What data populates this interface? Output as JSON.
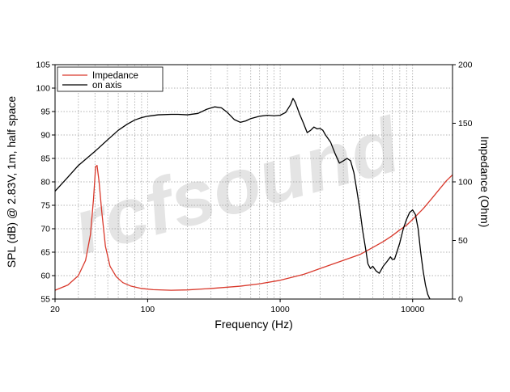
{
  "chart_data": {
    "type": "line",
    "xlabel": "Frequency (Hz)",
    "ylabel_left": "SPL (dB) @ 2.83V, 1m, half space",
    "ylabel_right": "Impedance (Ohm)",
    "x_scale": "log",
    "xlim": [
      20,
      20000
    ],
    "ylim_left": [
      55,
      105
    ],
    "ylim_right": [
      0,
      200
    ],
    "x_ticks": [
      "20",
      "100",
      "1000",
      "10000"
    ],
    "y_left_ticks": [
      "105",
      "100",
      "95",
      "90",
      "85",
      "80",
      "75",
      "70",
      "65",
      "60",
      "55"
    ],
    "y_right_ticks": [
      "200",
      "150",
      "100",
      "50",
      "0"
    ],
    "grid": true,
    "legend_position": "top-left",
    "watermark": "rcfsound",
    "series": [
      {
        "name": "Impedance",
        "axis": "right",
        "color": "#d9392c",
        "points": [
          [
            20,
            7.5
          ],
          [
            25,
            12
          ],
          [
            30,
            20
          ],
          [
            34,
            33
          ],
          [
            37,
            55
          ],
          [
            39,
            85
          ],
          [
            40.5,
            113
          ],
          [
            41.5,
            114
          ],
          [
            43,
            100
          ],
          [
            45,
            75
          ],
          [
            48,
            45
          ],
          [
            52,
            28
          ],
          [
            58,
            19
          ],
          [
            65,
            14
          ],
          [
            75,
            11
          ],
          [
            90,
            9
          ],
          [
            110,
            8
          ],
          [
            150,
            7.5
          ],
          [
            200,
            7.8
          ],
          [
            300,
            9
          ],
          [
            500,
            11
          ],
          [
            700,
            13
          ],
          [
            1000,
            16
          ],
          [
            1500,
            21
          ],
          [
            2000,
            26
          ],
          [
            3000,
            33
          ],
          [
            4000,
            38
          ],
          [
            5000,
            44
          ],
          [
            6000,
            49
          ],
          [
            7000,
            54
          ],
          [
            8000,
            59
          ],
          [
            9000,
            63
          ],
          [
            10000,
            68
          ],
          [
            12000,
            77
          ],
          [
            14000,
            86
          ],
          [
            16000,
            94
          ],
          [
            18000,
            101
          ],
          [
            20000,
            106
          ]
        ]
      },
      {
        "name": "on axis",
        "axis": "left",
        "color": "#000000",
        "points": [
          [
            20,
            78
          ],
          [
            25,
            81
          ],
          [
            30,
            83.5
          ],
          [
            40,
            86.5
          ],
          [
            50,
            89
          ],
          [
            60,
            91
          ],
          [
            70,
            92.3
          ],
          [
            80,
            93.2
          ],
          [
            90,
            93.7
          ],
          [
            100,
            94
          ],
          [
            120,
            94.3
          ],
          [
            150,
            94.4
          ],
          [
            170,
            94.4
          ],
          [
            200,
            94.3
          ],
          [
            240,
            94.6
          ],
          [
            280,
            95.5
          ],
          [
            320,
            96
          ],
          [
            360,
            95.8
          ],
          [
            400,
            94.8
          ],
          [
            450,
            93.3
          ],
          [
            500,
            92.7
          ],
          [
            550,
            93
          ],
          [
            600,
            93.5
          ],
          [
            700,
            94
          ],
          [
            800,
            94.2
          ],
          [
            900,
            94.1
          ],
          [
            1000,
            94.2
          ],
          [
            1100,
            94.8
          ],
          [
            1200,
            96.5
          ],
          [
            1250,
            97.8
          ],
          [
            1300,
            97
          ],
          [
            1400,
            94.5
          ],
          [
            1500,
            92.5
          ],
          [
            1600,
            90.5
          ],
          [
            1700,
            91
          ],
          [
            1800,
            91.7
          ],
          [
            1900,
            91.3
          ],
          [
            2000,
            91.4
          ],
          [
            2100,
            91
          ],
          [
            2200,
            90
          ],
          [
            2400,
            88.5
          ],
          [
            2600,
            86
          ],
          [
            2800,
            84
          ],
          [
            3000,
            84.5
          ],
          [
            3200,
            85
          ],
          [
            3400,
            84.5
          ],
          [
            3600,
            82
          ],
          [
            3800,
            78
          ],
          [
            4000,
            74
          ],
          [
            4200,
            69.5
          ],
          [
            4400,
            66
          ],
          [
            4600,
            62.5
          ],
          [
            4800,
            61.5
          ],
          [
            5000,
            62
          ],
          [
            5300,
            61
          ],
          [
            5600,
            60.5
          ],
          [
            6000,
            62
          ],
          [
            6400,
            63
          ],
          [
            6800,
            64
          ],
          [
            7000,
            63.5
          ],
          [
            7300,
            63.5
          ],
          [
            7600,
            65
          ],
          [
            8000,
            67
          ],
          [
            8500,
            70
          ],
          [
            9000,
            72
          ],
          [
            9500,
            73.5
          ],
          [
            10000,
            74
          ],
          [
            10500,
            73
          ],
          [
            11000,
            70
          ],
          [
            11500,
            65
          ],
          [
            12000,
            61
          ],
          [
            12500,
            58
          ],
          [
            13000,
            56
          ],
          [
            13500,
            55
          ]
        ]
      }
    ]
  }
}
